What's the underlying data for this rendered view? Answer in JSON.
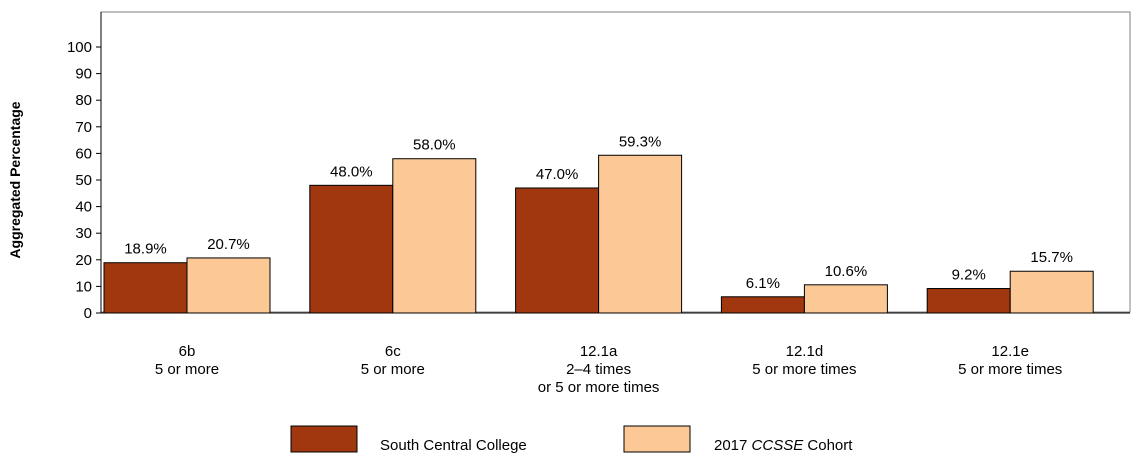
{
  "chart_data": {
    "type": "bar",
    "title": "",
    "xlabel": "",
    "ylabel": "Aggregated Percentage",
    "ylim": [
      0,
      100
    ],
    "yticks": [
      0,
      10,
      20,
      30,
      40,
      50,
      60,
      70,
      80,
      90,
      100
    ],
    "grid": false,
    "legend_position": "bottom",
    "categories": [
      [
        "6b",
        "5 or more"
      ],
      [
        "6c",
        "5 or more"
      ],
      [
        "12.1a",
        "2–4 times",
        "or 5 or more times"
      ],
      [
        "12.1d",
        "5 or more times"
      ],
      [
        "12.1e",
        "5 or more times"
      ]
    ],
    "series": [
      {
        "name": "South Central College",
        "name_parts": [
          {
            "text": "South Central College",
            "italic": false
          }
        ],
        "color": "#A0370E",
        "values": [
          18.9,
          48.0,
          47.0,
          6.1,
          9.2
        ],
        "labels": [
          "18.9%",
          "48.0%",
          "47.0%",
          "6.1%",
          "9.2%"
        ]
      },
      {
        "name": "2017 CCSSE Cohort",
        "name_parts": [
          {
            "text": "2017 ",
            "italic": false
          },
          {
            "text": "CCSSE",
            "italic": true
          },
          {
            "text": " Cohort",
            "italic": false
          }
        ],
        "color": "#FCC896",
        "values": [
          20.7,
          58.0,
          59.3,
          10.6,
          15.7
        ],
        "labels": [
          "20.7%",
          "58.0%",
          "59.3%",
          "10.6%",
          "15.7%"
        ]
      }
    ]
  }
}
